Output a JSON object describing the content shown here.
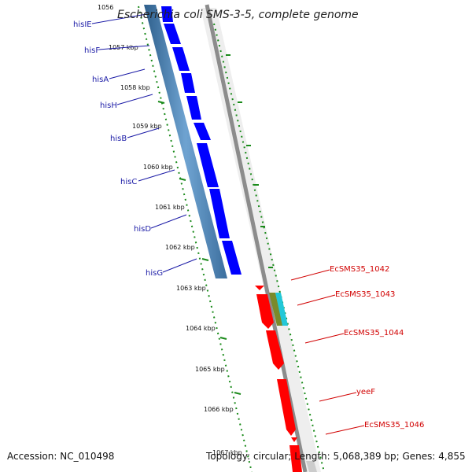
{
  "title": "Escherichia coli SMS-3-5, complete genome",
  "colors": {
    "forward_gene": "#0000ff",
    "reverse_gene": "#ff0000",
    "backbone_blue": "#4f86b8",
    "ticks_green": "#1a8a1a",
    "label_blue": "#1a1aa6",
    "label_red": "#d10000",
    "divider_grey": "#8c8c8c"
  },
  "kbp_ticks": [
    "1056",
    "1057 kbp",
    "1058 kbp",
    "1059 kbp",
    "1060 kbp",
    "1061 kbp",
    "1062 kbp",
    "1063 kbp",
    "1064 kbp",
    "1065 kbp",
    "1066 kbp",
    "1067 kbp"
  ],
  "left_genes": [
    "hisIE",
    "hisF",
    "hisA",
    "hisH",
    "hisB",
    "hisC",
    "hisD",
    "hisG"
  ],
  "right_genes": [
    "EcSMS35_1042",
    "EcSMS35_1043",
    "EcSMS35_1044",
    "yeeF",
    "EcSMS35_1046"
  ],
  "footer": {
    "accession": "Accession: NC_010498",
    "stats": "Topology: circular; Length: 5,068,389 bp; Genes: 4,855"
  }
}
